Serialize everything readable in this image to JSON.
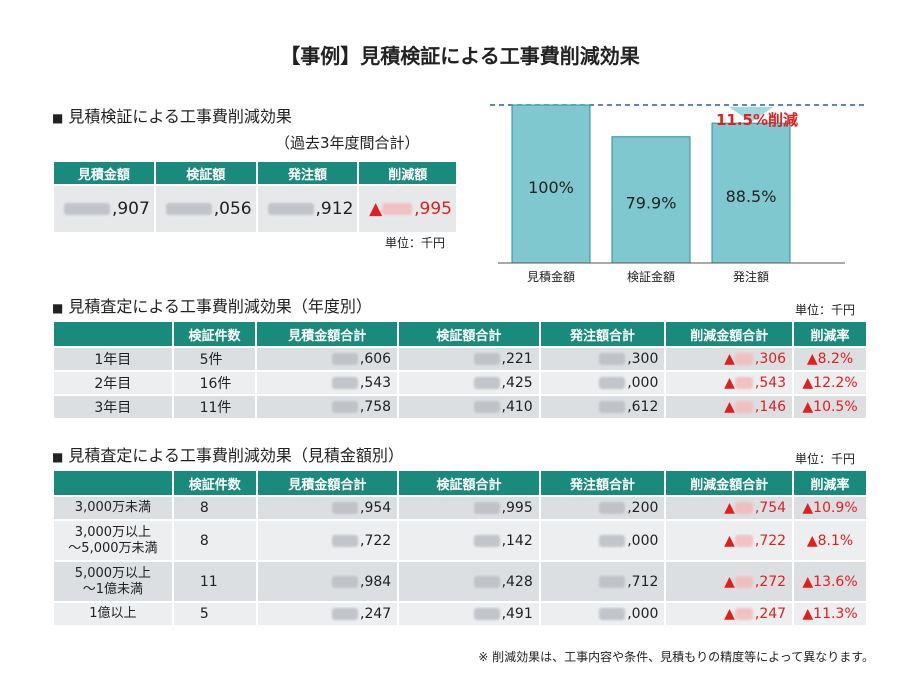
{
  "page_title": "【事例】見積検証による工事費削減効果",
  "summary": {
    "title": "見積検証による工事費削減効果",
    "subtitle": "（過去3年度間合計）",
    "headers": [
      "見積金額",
      "検証額",
      "発注額",
      "削減額"
    ],
    "values": [
      ",907",
      ",056",
      ",912",
      ",995"
    ],
    "triangle": "▲",
    "unit": "単位：千円"
  },
  "chart_data": {
    "type": "bar",
    "categories": [
      "見積金額",
      "検証金額",
      "発注額"
    ],
    "values": [
      100,
      79.9,
      88.5
    ],
    "value_labels": [
      "100%",
      "79.9%",
      "88.5%"
    ],
    "annotation": "11.5%削減",
    "bar_color": "#80c8cf",
    "ylim": [
      0,
      100
    ]
  },
  "by_year": {
    "title": "見積査定による工事費削減効果（年度別）",
    "unit": "単位：千円",
    "headers": [
      "",
      "検証件数",
      "見積金額合計",
      "検証額合計",
      "発注額合計",
      "削減金額合計",
      "削減率"
    ],
    "rows": [
      {
        "label": "1年目",
        "count": "5件",
        "estimate": ",606",
        "verified": ",221",
        "ordered": ",300",
        "reduction": ",306",
        "rate": "▲8.2%"
      },
      {
        "label": "2年目",
        "count": "16件",
        "estimate": ",543",
        "verified": ",425",
        "ordered": ",000",
        "reduction": ",543",
        "rate": "▲12.2%"
      },
      {
        "label": "3年目",
        "count": "11件",
        "estimate": ",758",
        "verified": ",410",
        "ordered": ",612",
        "reduction": ",146",
        "rate": "▲10.5%"
      }
    ]
  },
  "by_amount": {
    "title": "見積査定による工事費削減効果（見積金額別）",
    "unit": "単位：千円",
    "headers": [
      "",
      "検証件数",
      "見積金額合計",
      "検証額合計",
      "発注額合計",
      "削減金額合計",
      "削減率"
    ],
    "rows": [
      {
        "label1": "3,000万未満",
        "label2": "",
        "count": "8",
        "estimate": ",954",
        "verified": ",995",
        "ordered": ",200",
        "reduction": ",754",
        "rate": "▲10.9%"
      },
      {
        "label1": "3,000万以上",
        "label2": "～5,000万未満",
        "count": "8",
        "estimate": ",722",
        "verified": ",142",
        "ordered": ",000",
        "reduction": ",722",
        "rate": "▲8.1%"
      },
      {
        "label1": "5,000万以上",
        "label2": "～1億未満",
        "count": "11",
        "estimate": ",984",
        "verified": ",428",
        "ordered": ",712",
        "reduction": ",272",
        "rate": "▲13.6%"
      },
      {
        "label1": "1億以上",
        "label2": "",
        "count": "5",
        "estimate": ",247",
        "verified": ",491",
        "ordered": ",000",
        "reduction": ",247",
        "rate": "▲11.3%"
      }
    ]
  },
  "footnote": "※ 削減効果は、工事内容や条件、見積もりの精度等によって異なります。",
  "triangle": "▲",
  "square_bullet": "■"
}
